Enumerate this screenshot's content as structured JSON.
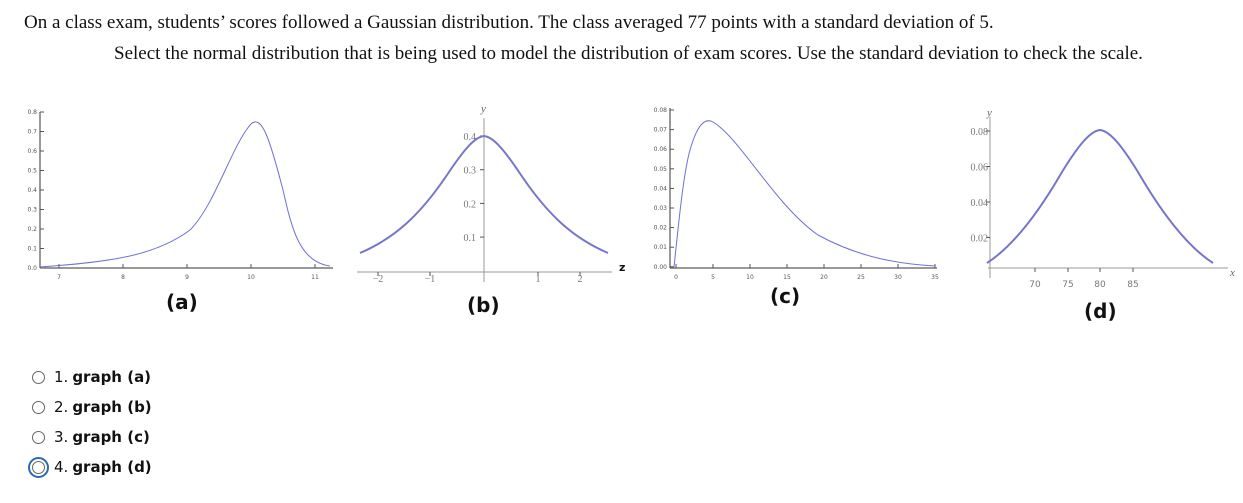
{
  "question": {
    "line1": "On a class exam, students’ scores followed a Gaussian distribution. The class averaged 77 points with a standard deviation of 5.",
    "line2": "Select the normal distribution that is being used to model the distribution of exam scores. Use the standard deviation to check the scale."
  },
  "graphs": {
    "a": {
      "label": "(a)",
      "yticks": [
        "0.8",
        "0.7",
        "0.6",
        "0.5",
        "0.4",
        "0.3",
        "0.2",
        "0.1",
        "0.0"
      ],
      "xticks": [
        "7",
        "8",
        "9",
        "10",
        "11"
      ]
    },
    "b": {
      "label": "(b)",
      "yaxis": "y",
      "yticks": [
        "0.4",
        "0.3",
        "0.2",
        "0.1"
      ],
      "xticks": [
        "−2",
        "−1",
        "1",
        "2"
      ],
      "xaxis": "z"
    },
    "c": {
      "label": "(c)",
      "yticks": [
        "0.08",
        "0.07",
        "0.06",
        "0.05",
        "0.04",
        "0.03",
        "0.02",
        "0.01",
        "0.00"
      ],
      "xticks": [
        "0",
        "5",
        "10",
        "15",
        "20",
        "25",
        "30",
        "35"
      ]
    },
    "d": {
      "label": "(d)",
      "yaxis": "y",
      "yticks": [
        "0.08",
        "0.06",
        "0.04",
        "0.02"
      ],
      "xticks": [
        "70",
        "75",
        "80",
        "85"
      ],
      "xaxis": "x"
    }
  },
  "options": [
    {
      "num": "1.",
      "label": "graph (a)",
      "selected": false
    },
    {
      "num": "2.",
      "label": "graph (b)",
      "selected": false
    },
    {
      "num": "3.",
      "label": "graph (c)",
      "selected": false
    },
    {
      "num": "4.",
      "label": "graph (d)",
      "selected": true
    }
  ]
}
